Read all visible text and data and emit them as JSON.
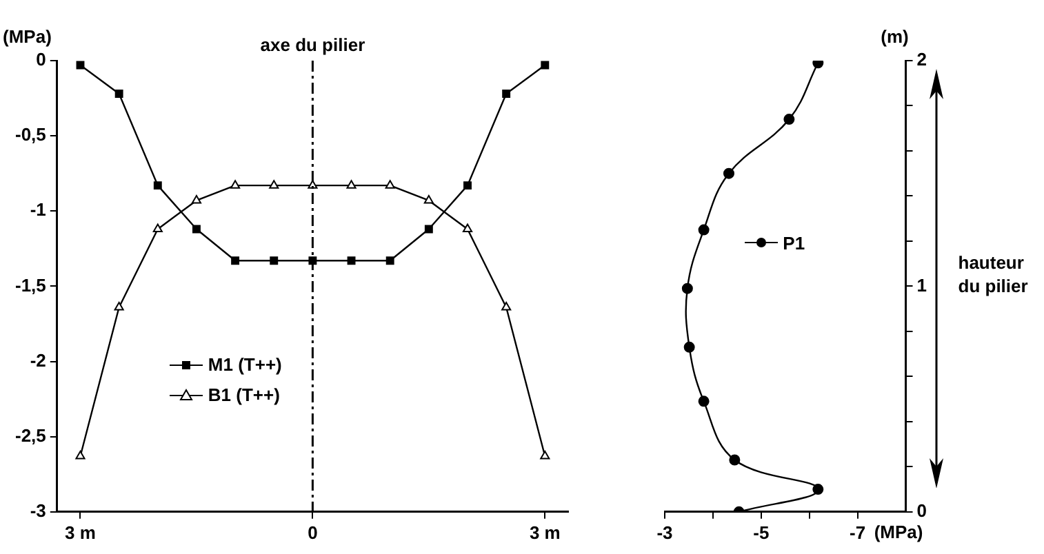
{
  "chart_data": [
    {
      "type": "line",
      "ylabel": "(MPa)",
      "x": [
        -3,
        -2.5,
        -2,
        -1.5,
        -1,
        -0.5,
        0,
        0.5,
        1,
        1.5,
        2,
        2.5,
        3
      ],
      "series": [
        {
          "name": "M1 (T++)",
          "color": "#000000",
          "marker": "square",
          "values": [
            -0.03,
            -0.22,
            -0.83,
            -1.12,
            -1.33,
            -1.33,
            -1.33,
            -1.33,
            -1.33,
            -1.12,
            -0.83,
            -0.22,
            -0.03
          ]
        },
        {
          "name": "B1 (T++)",
          "color": "#000000",
          "marker": "triangle",
          "values": [
            -2.63,
            -1.64,
            -1.12,
            -0.93,
            -0.83,
            -0.83,
            -0.83,
            -0.83,
            -0.83,
            -0.93,
            -1.12,
            -1.64,
            -2.63
          ]
        }
      ],
      "xlim": [
        -3.3,
        3.3
      ],
      "xticks": [
        {
          "value": -3,
          "label": "3 m"
        },
        0,
        {
          "value": 3,
          "label": "3 m"
        }
      ],
      "ylim": [
        -3,
        0
      ],
      "yticks": [
        {
          "value": -3,
          "label": "-3"
        },
        {
          "value": -2.5,
          "label": "-2,5"
        },
        {
          "value": -2,
          "label": "-2"
        },
        {
          "value": -1.5,
          "label": "-1,5"
        },
        {
          "value": -1,
          "label": "-1"
        },
        {
          "value": -0.5,
          "label": "-0,5"
        },
        {
          "value": 0,
          "label": "0"
        }
      ],
      "ref_lines": [
        {
          "axis": "x",
          "value": 0,
          "label": "axe du pilier",
          "line_style": "dashed",
          "color": "#000000"
        }
      ],
      "legend": "bottom left"
    },
    {
      "type": "line",
      "ylabel": "(m)",
      "xlabel": "(MPa)",
      "series": [
        {
          "name": "P1",
          "color": "#000000",
          "marker": "circle",
          "x": [
            -4.54,
            -6.18,
            -4.45,
            -3.81,
            -3.51,
            -3.47,
            -3.81,
            -4.33,
            -5.58,
            -6.18
          ],
          "values": [
            0,
            0.1,
            0.23,
            0.49,
            0.73,
            0.99,
            1.25,
            1.5,
            1.74,
            1.99
          ]
        }
      ],
      "xlim": [
        -3,
        -8
      ],
      "xticks": [
        -3,
        {
          "value": -4,
          "label": null
        },
        -5,
        {
          "value": -6,
          "label": null
        },
        -7
      ],
      "ylim": [
        0,
        2
      ],
      "yticks": [
        0,
        {
          "value": 0.2,
          "label": null
        },
        {
          "value": 0.4,
          "label": null
        },
        {
          "value": 0.6,
          "label": null
        },
        {
          "value": 0.8,
          "label": null
        },
        1,
        {
          "value": 1.2,
          "label": null
        },
        {
          "value": 1.4,
          "label": null
        },
        {
          "value": 1.6,
          "label": null
        },
        {
          "value": 1.8,
          "label": null
        },
        2
      ],
      "annotations": [
        "hauteur du pilier"
      ],
      "legend": "center"
    }
  ]
}
